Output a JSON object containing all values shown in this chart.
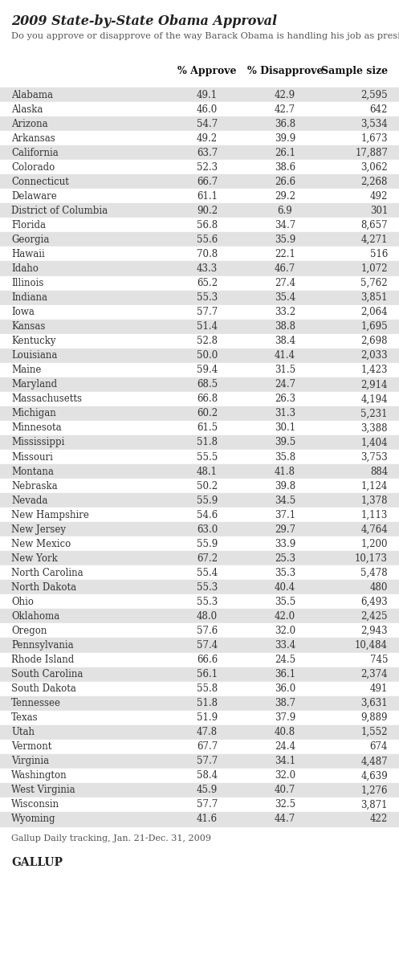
{
  "title": "2009 State-by-State Obama Approval",
  "subtitle": "Do you approve or disapprove of the way Barack Obama is handling his job as president?",
  "col_headers": [
    "% Approve",
    "% Disapprove",
    "Sample size"
  ],
  "footer": "Gallup Daily tracking, Jan. 21-Dec. 31, 2009",
  "footer2": "GALLUP",
  "states": [
    "Alabama",
    "Alaska",
    "Arizona",
    "Arkansas",
    "California",
    "Colorado",
    "Connecticut",
    "Delaware",
    "District of Columbia",
    "Florida",
    "Georgia",
    "Hawaii",
    "Idaho",
    "Illinois",
    "Indiana",
    "Iowa",
    "Kansas",
    "Kentucky",
    "Louisiana",
    "Maine",
    "Maryland",
    "Massachusetts",
    "Michigan",
    "Minnesota",
    "Mississippi",
    "Missouri",
    "Montana",
    "Nebraska",
    "Nevada",
    "New Hampshire",
    "New Jersey",
    "New Mexico",
    "New York",
    "North Carolina",
    "North Dakota",
    "Ohio",
    "Oklahoma",
    "Oregon",
    "Pennsylvania",
    "Rhode Island",
    "South Carolina",
    "South Dakota",
    "Tennessee",
    "Texas",
    "Utah",
    "Vermont",
    "Virginia",
    "Washington",
    "West Virginia",
    "Wisconsin",
    "Wyoming"
  ],
  "approve": [
    49.1,
    46.0,
    54.7,
    49.2,
    63.7,
    52.3,
    66.7,
    61.1,
    90.2,
    56.8,
    55.6,
    70.8,
    43.3,
    65.2,
    55.3,
    57.7,
    51.4,
    52.8,
    50.0,
    59.4,
    68.5,
    66.8,
    60.2,
    61.5,
    51.8,
    55.5,
    48.1,
    50.2,
    55.9,
    54.6,
    63.0,
    55.9,
    67.2,
    55.4,
    55.3,
    55.3,
    48.0,
    57.6,
    57.4,
    66.6,
    56.1,
    55.8,
    51.8,
    51.9,
    47.8,
    67.7,
    57.7,
    58.4,
    45.9,
    57.7,
    41.6
  ],
  "disapprove": [
    42.9,
    42.7,
    36.8,
    39.9,
    26.1,
    38.6,
    26.6,
    29.2,
    6.9,
    34.7,
    35.9,
    22.1,
    46.7,
    27.4,
    35.4,
    33.2,
    38.8,
    38.4,
    41.4,
    31.5,
    24.7,
    26.3,
    31.3,
    30.1,
    39.5,
    35.8,
    41.8,
    39.8,
    34.5,
    37.1,
    29.7,
    33.9,
    25.3,
    35.3,
    40.4,
    35.5,
    42.0,
    32.0,
    33.4,
    24.5,
    36.1,
    36.0,
    38.7,
    37.9,
    40.8,
    24.4,
    34.1,
    32.0,
    40.7,
    32.5,
    44.7
  ],
  "sample": [
    "2,595",
    "642",
    "3,534",
    "1,673",
    "17,887",
    "3,062",
    "2,268",
    "492",
    "301",
    "8,657",
    "4,271",
    "516",
    "1,072",
    "5,762",
    "3,851",
    "2,064",
    "1,695",
    "2,698",
    "2,033",
    "1,423",
    "2,914",
    "4,194",
    "5,231",
    "3,388",
    "1,404",
    "3,753",
    "884",
    "1,124",
    "1,378",
    "1,113",
    "4,764",
    "1,200",
    "10,173",
    "5,478",
    "480",
    "6,493",
    "2,425",
    "2,943",
    "10,484",
    "745",
    "2,374",
    "491",
    "3,631",
    "9,889",
    "1,552",
    "674",
    "4,487",
    "4,639",
    "1,276",
    "3,871",
    "422"
  ],
  "bg_gray": "#e2e2e2",
  "bg_white": "#ffffff",
  "text_color": "#333333",
  "title_color": "#222222",
  "subtitle_color": "#555555",
  "col_header_color": "#111111",
  "footer_color": "#555555",
  "gallup_color": "#222222",
  "fig_width": 4.97,
  "fig_height": 12.14,
  "dpi": 100
}
